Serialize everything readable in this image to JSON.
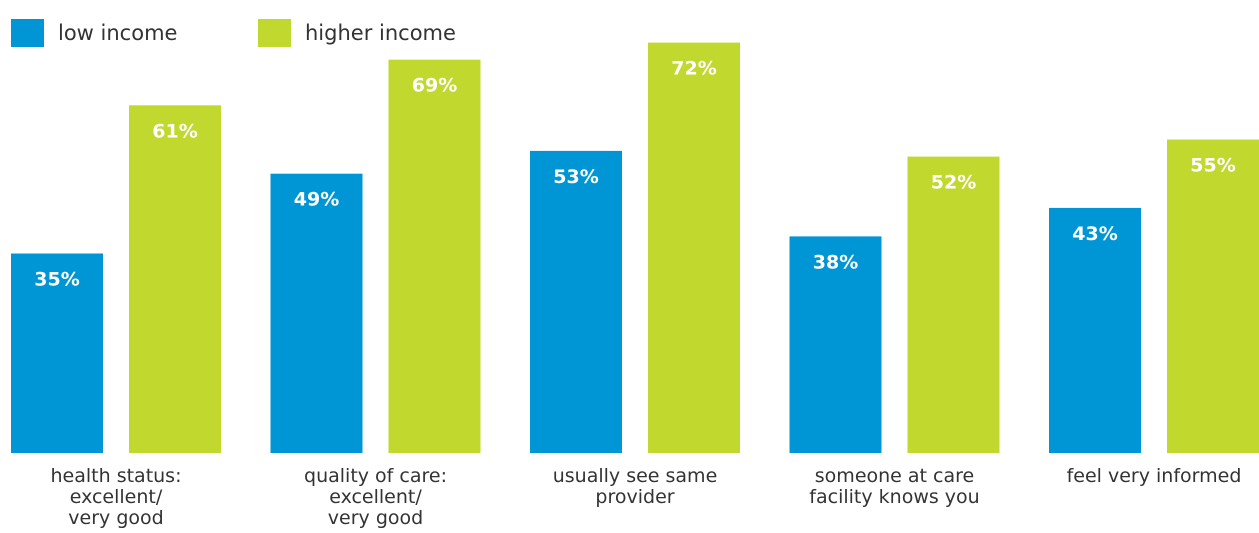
{
  "chart_data": {
    "type": "bar",
    "title": "",
    "xlabel": "",
    "ylabel": "",
    "ylim": [
      0,
      75
    ],
    "value_suffix": "%",
    "legend_position": "top-left",
    "grid": false,
    "categories": [
      [
        "health status:",
        "excellent/",
        "very good"
      ],
      [
        "quality of care:",
        "excellent/",
        "very good"
      ],
      [
        "usually see same",
        "provider"
      ],
      [
        "someone at care",
        "facility knows you"
      ],
      [
        "feel very informed"
      ]
    ],
    "series": [
      {
        "name": "low income",
        "color": "#0096d6",
        "values": [
          35,
          49,
          53,
          38,
          43
        ],
        "labels": [
          "35%",
          "49%",
          "53%",
          "38%",
          "43%"
        ]
      },
      {
        "name": "higher income",
        "color": "#c1d82f",
        "values": [
          61,
          69,
          72,
          52,
          55
        ],
        "labels": [
          "61%",
          "69%",
          "72%",
          "52%",
          "55%"
        ]
      }
    ]
  }
}
